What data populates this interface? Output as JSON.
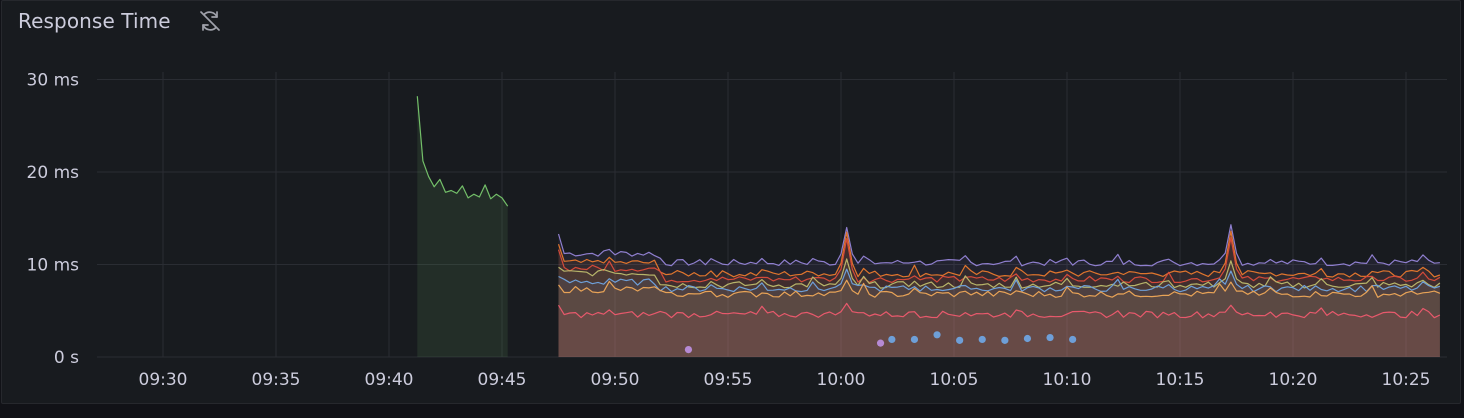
{
  "panel": {
    "title": "Response Time",
    "header_icon": "sync-off-icon"
  },
  "colors": {
    "background": "#181b1f",
    "grid": "#2a2d33",
    "text": "#ccccdc",
    "green_series": "#73bf69"
  },
  "chart_data": {
    "type": "area",
    "title": "Response Time",
    "xlabel": "",
    "ylabel": "",
    "x_unit": "time",
    "y_unit": "ms",
    "ylim": [
      0,
      30
    ],
    "xlim": [
      "09:27",
      "10:27"
    ],
    "y_ticks": [
      "0 s",
      "10 ms",
      "20 ms",
      "30 ms"
    ],
    "y_tick_values": [
      0,
      10,
      20,
      30
    ],
    "x_ticks": [
      "09:30",
      "09:35",
      "09:40",
      "09:45",
      "09:50",
      "09:55",
      "10:00",
      "10:05",
      "10:10",
      "10:15",
      "10:20",
      "10:25"
    ],
    "grid": true,
    "legend": "none",
    "series": [
      {
        "color": "#73bf69",
        "fill": true,
        "x": [
          "09:41:15",
          "09:41:30",
          "09:41:45",
          "09:42:00",
          "09:42:15",
          "09:42:30",
          "09:42:45",
          "09:43:00",
          "09:43:15",
          "09:43:30",
          "09:43:45",
          "09:44:00",
          "09:44:15",
          "09:44:30",
          "09:44:45",
          "09:45:00",
          "09:45:15"
        ],
        "values": [
          28.2,
          21.2,
          19.5,
          18.4,
          19.2,
          17.8,
          18.0,
          17.7,
          18.5,
          17.2,
          17.6,
          17.3,
          18.6,
          17.1,
          17.6,
          17.2,
          16.3
        ]
      },
      {
        "color": "#8f7fcf",
        "fill": true,
        "start": "09:47:30",
        "end": "10:26:30",
        "base": 10.2,
        "first": 13.3,
        "early_offset": 1.0,
        "spikes": [
          [
            "10:00:15",
            14.0
          ],
          [
            "10:17:15",
            14.3
          ]
        ]
      },
      {
        "color": "#e0752d",
        "fill": true,
        "start": "09:47:30",
        "end": "10:26:30",
        "base": 9.0,
        "first": 12.2,
        "early_offset": 1.2,
        "spikes": [
          [
            "10:00:15",
            13.5
          ],
          [
            "10:17:15",
            13.6
          ]
        ]
      },
      {
        "color": "#d44a3a",
        "fill": true,
        "start": "09:47:30",
        "end": "10:26:30",
        "base": 8.4,
        "first": 11.6,
        "early_offset": 1.2,
        "spikes": [
          [
            "10:00:15",
            12.8
          ],
          [
            "10:17:15",
            12.9
          ]
        ]
      },
      {
        "color": "#b7b56a",
        "fill": true,
        "start": "09:47:30",
        "end": "10:26:30",
        "base": 7.8,
        "first": 9.7,
        "early_offset": 1.3,
        "spikes": [
          [
            "10:00:15",
            10.6
          ],
          [
            "10:17:15",
            10.4
          ]
        ]
      },
      {
        "color": "#6e9fd8",
        "fill": true,
        "start": "09:47:30",
        "end": "10:26:30",
        "base": 7.4,
        "first": 8.7,
        "early_offset": 0.7,
        "spikes": [
          [
            "10:00:15",
            9.5
          ],
          [
            "10:17:15",
            9.3
          ]
        ]
      },
      {
        "color": "#e8a357",
        "fill": true,
        "start": "09:47:30",
        "end": "10:26:30",
        "base": 6.8,
        "first": 7.8,
        "early_offset": 0.5,
        "spikes": [
          [
            "10:00:15",
            8.3
          ],
          [
            "10:17:15",
            8.1
          ]
        ]
      },
      {
        "color": "#e8596c",
        "fill": true,
        "start": "09:47:30",
        "end": "10:26:30",
        "base": 4.6,
        "first": 5.6,
        "early_offset": 0.0,
        "spikes": [
          [
            "10:00:15",
            5.8
          ],
          [
            "10:17:15",
            5.6
          ]
        ]
      }
    ],
    "points": [
      {
        "x": "09:53:15",
        "y": 0.8,
        "color": "#b68ad4"
      },
      {
        "x": "10:01:45",
        "y": 1.5,
        "color": "#b68ad4"
      },
      {
        "x": "10:02:15",
        "y": 1.9,
        "color": "#6e9fd8"
      },
      {
        "x": "10:03:15",
        "y": 1.9,
        "color": "#6e9fd8"
      },
      {
        "x": "10:04:15",
        "y": 2.4,
        "color": "#6e9fd8"
      },
      {
        "x": "10:05:15",
        "y": 1.8,
        "color": "#6e9fd8"
      },
      {
        "x": "10:06:15",
        "y": 1.9,
        "color": "#6e9fd8"
      },
      {
        "x": "10:07:15",
        "y": 1.8,
        "color": "#6e9fd8"
      },
      {
        "x": "10:08:15",
        "y": 2.0,
        "color": "#6e9fd8"
      },
      {
        "x": "10:09:15",
        "y": 2.1,
        "color": "#6e9fd8"
      },
      {
        "x": "10:10:15",
        "y": 1.9,
        "color": "#6e9fd8"
      }
    ]
  }
}
